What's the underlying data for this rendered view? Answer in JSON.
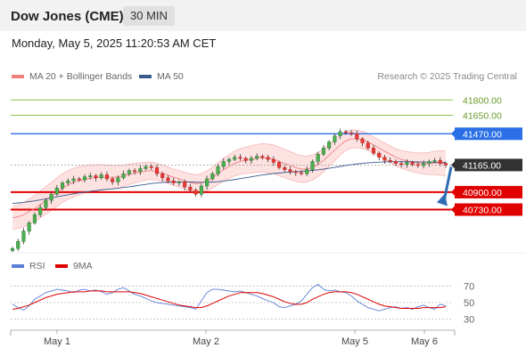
{
  "header": {
    "instrument": "Dow Jones (CME)",
    "timeframe": "30 MIN"
  },
  "timestamp": "Monday, May 5, 2025 11:20:53 AM CET",
  "legend": {
    "bollinger": {
      "label": "MA 20 + Bollinger Bands",
      "color": "#f08080"
    },
    "ma50": {
      "label": "MA 50",
      "color": "#3a5a8c"
    }
  },
  "credit": "Research © 2025 Trading Central",
  "rsi_legend": {
    "rsi": {
      "label": "RSI",
      "color": "#5b7fd6"
    },
    "ma9": {
      "label": "9MA",
      "color": "#e00000"
    }
  },
  "chart_data": [
    {
      "type": "candlestick",
      "title": "Dow Jones (CME)",
      "ylim": [
        40300,
        41950
      ],
      "x_ticks": [
        "May 1",
        "May 2",
        "May 5",
        "May 6"
      ],
      "levels": [
        {
          "label": "41800.00",
          "value": 41800,
          "kind": "resistance",
          "color": "#8bc34a"
        },
        {
          "label": "41650.00",
          "value": 41650,
          "kind": "resistance",
          "color": "#8bc34a"
        },
        {
          "label": "41470.00",
          "value": 41470,
          "kind": "pivot",
          "color": "#2b6fe6"
        },
        {
          "label": "41165.00",
          "value": 41165,
          "kind": "last",
          "color": "#333333"
        },
        {
          "label": "40900.00",
          "value": 40900,
          "kind": "support",
          "color": "#e00000"
        },
        {
          "label": "40730.00",
          "value": 40730,
          "kind": "support",
          "color": "#e00000"
        }
      ],
      "close_series": [
        40350,
        40420,
        40520,
        40600,
        40680,
        40750,
        40820,
        40880,
        40940,
        40990,
        41010,
        41030,
        41020,
        41050,
        41060,
        41040,
        41070,
        41030,
        41000,
        41040,
        41080,
        41110,
        41100,
        41130,
        41150,
        41140,
        41080,
        41040,
        41010,
        40990,
        41000,
        40950,
        40920,
        40880,
        40960,
        41030,
        41080,
        41150,
        41200,
        41220,
        41240,
        41230,
        41210,
        41230,
        41250,
        41240,
        41220,
        41190,
        41140,
        41120,
        41100,
        41090,
        41080,
        41120,
        41200,
        41270,
        41330,
        41390,
        41450,
        41490,
        41480,
        41470,
        41420,
        41380,
        41330,
        41280,
        41240,
        41210,
        41200,
        41180,
        41170,
        41190,
        41170,
        41160,
        41180,
        41200,
        41210,
        41180,
        41165
      ],
      "ma20_series": [
        40650,
        40660,
        40680,
        40710,
        40740,
        40780,
        40820,
        40860,
        40900,
        40940,
        40970,
        40995,
        41010,
        41025,
        41035,
        41040,
        41045,
        41045,
        41045,
        41050,
        41060,
        41075,
        41085,
        41095,
        41105,
        41110,
        41100,
        41085,
        41065,
        41045,
        41030,
        41010,
        40995,
        40980,
        40990,
        41010,
        41040,
        41080,
        41120,
        41150,
        41180,
        41200,
        41210,
        41220,
        41230,
        41235,
        41230,
        41220,
        41200,
        41180,
        41160,
        41140,
        41125,
        41125,
        41140,
        41170,
        41210,
        41260,
        41310,
        41360,
        41400,
        41420,
        41420,
        41410,
        41390,
        41360,
        41330,
        41300,
        41270,
        41240,
        41220,
        41205,
        41195,
        41185,
        41180,
        41180,
        41185,
        41185,
        41180
      ],
      "ma50_series": [
        40790,
        40795,
        40800,
        40808,
        40815,
        40825,
        40835,
        40845,
        40855,
        40865,
        40875,
        40885,
        40893,
        40900,
        40908,
        40915,
        40922,
        40928,
        40932,
        40938,
        40945,
        40952,
        40960,
        40968,
        40976,
        40984,
        40990,
        40994,
        40997,
        40999,
        41000,
        41000,
        40999,
        40997,
        40996,
        40997,
        40999,
        41002,
        41008,
        41015,
        41023,
        41032,
        41041,
        41050,
        41059,
        41068,
        41075,
        41082,
        41087,
        41092,
        41096,
        41100,
        41103,
        41107,
        41112,
        41118,
        41125,
        41133,
        41142,
        41151,
        41160,
        41168,
        41175,
        41181,
        41186,
        41190,
        41193,
        41195,
        41196,
        41197,
        41197,
        41197,
        41196,
        41195,
        41194,
        41193,
        41192,
        41191,
        41190
      ]
    },
    {
      "type": "line",
      "title": "RSI",
      "ylim": [
        20,
        80
      ],
      "y_ticks": [
        70,
        50,
        30
      ],
      "series": [
        {
          "name": "RSI",
          "values": [
            48,
            44,
            41,
            46,
            54,
            58,
            62,
            64,
            66,
            65,
            64,
            62,
            65,
            66,
            64,
            65,
            63,
            60,
            62,
            66,
            68,
            64,
            60,
            58,
            55,
            52,
            50,
            49,
            48,
            47,
            46,
            45,
            44,
            42,
            52,
            62,
            66,
            66,
            65,
            64,
            63,
            64,
            62,
            60,
            58,
            55,
            52,
            50,
            45,
            44,
            46,
            48,
            52,
            60,
            68,
            72,
            66,
            64,
            65,
            63,
            62,
            58,
            52,
            48,
            44,
            42,
            40,
            42,
            44,
            45,
            43,
            44,
            42,
            45,
            47,
            44,
            42,
            48,
            46
          ]
        },
        {
          "name": "9MA",
          "values": [
            42,
            43,
            45,
            47,
            50,
            53,
            56,
            58,
            60,
            61,
            62,
            63,
            63,
            63,
            64,
            64,
            64,
            63,
            63,
            63,
            63,
            63,
            62,
            61,
            59,
            57,
            55,
            53,
            51,
            49,
            47,
            46,
            45,
            44,
            44,
            46,
            49,
            52,
            55,
            58,
            60,
            62,
            62,
            62,
            62,
            61,
            59,
            57,
            54,
            51,
            49,
            48,
            48,
            50,
            54,
            57,
            60,
            62,
            63,
            63,
            63,
            62,
            60,
            57,
            54,
            51,
            48,
            46,
            45,
            44,
            43,
            43,
            43,
            43,
            44,
            44,
            44,
            44,
            45
          ]
        }
      ]
    }
  ]
}
